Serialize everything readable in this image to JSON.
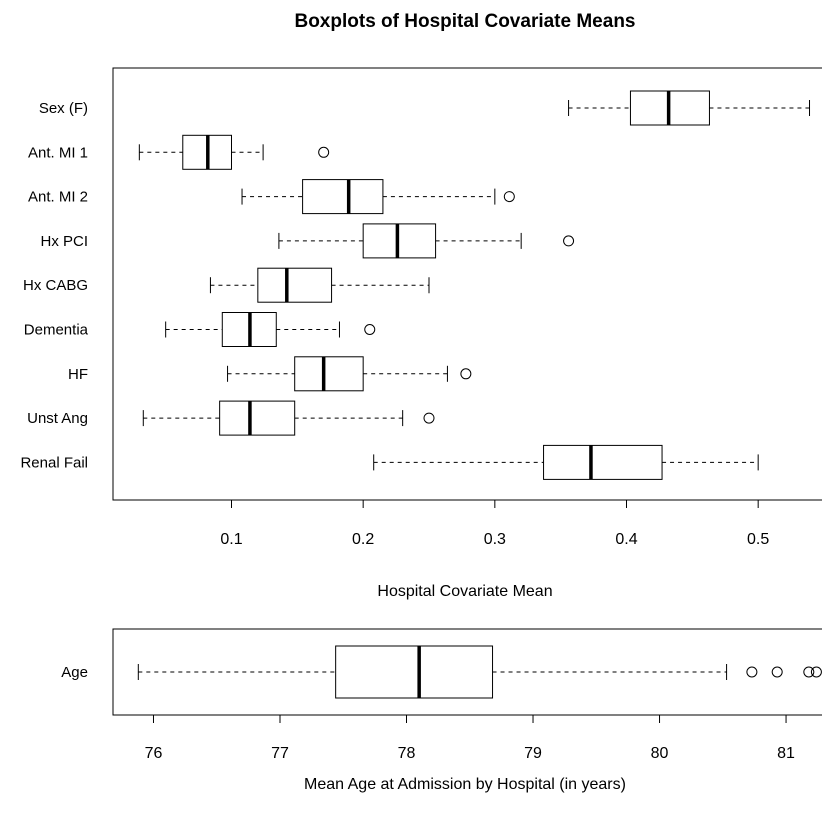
{
  "chart_data": [
    {
      "type": "boxplot",
      "title": "Boxplots of Hospital Covariate Means",
      "xlabel": "Hospital Covariate Mean",
      "ylabel": "",
      "xlim": [
        0.01,
        0.55
      ],
      "xticks": [
        0.1,
        0.2,
        0.3,
        0.4,
        0.5
      ],
      "xtick_labels": [
        "0.1",
        "0.2",
        "0.3",
        "0.4",
        "0.5"
      ],
      "orientation": "horizontal",
      "series": [
        {
          "name": "Sex (F)",
          "whisker_low": 0.356,
          "q1": 0.403,
          "median": 0.432,
          "q3": 0.463,
          "whisker_high": 0.539,
          "outliers": []
        },
        {
          "name": "Ant. MI 1",
          "whisker_low": 0.03,
          "q1": 0.063,
          "median": 0.082,
          "q3": 0.1,
          "whisker_high": 0.124,
          "outliers": [
            0.17
          ]
        },
        {
          "name": "Ant. MI 2",
          "whisker_low": 0.108,
          "q1": 0.154,
          "median": 0.189,
          "q3": 0.215,
          "whisker_high": 0.3,
          "outliers": [
            0.311
          ]
        },
        {
          "name": "Hx PCI",
          "whisker_low": 0.136,
          "q1": 0.2,
          "median": 0.226,
          "q3": 0.255,
          "whisker_high": 0.32,
          "outliers": [
            0.356
          ]
        },
        {
          "name": "Hx CABG",
          "whisker_low": 0.084,
          "q1": 0.12,
          "median": 0.142,
          "q3": 0.176,
          "whisker_high": 0.25,
          "outliers": []
        },
        {
          "name": "Dementia",
          "whisker_low": 0.05,
          "q1": 0.093,
          "median": 0.114,
          "q3": 0.134,
          "whisker_high": 0.182,
          "outliers": [
            0.205
          ]
        },
        {
          "name": "HF",
          "whisker_low": 0.097,
          "q1": 0.148,
          "median": 0.17,
          "q3": 0.2,
          "whisker_high": 0.264,
          "outliers": [
            0.278
          ]
        },
        {
          "name": "Unst Ang",
          "whisker_low": 0.033,
          "q1": 0.091,
          "median": 0.114,
          "q3": 0.148,
          "whisker_high": 0.23,
          "outliers": [
            0.25
          ]
        },
        {
          "name": "Renal Fail",
          "whisker_low": 0.208,
          "q1": 0.337,
          "median": 0.373,
          "q3": 0.427,
          "whisker_high": 0.5,
          "outliers": []
        }
      ]
    },
    {
      "type": "boxplot",
      "title": "",
      "xlabel": "Mean Age at Admission by Hospital (in years)",
      "ylabel": "",
      "xlim": [
        75.68,
        81.3
      ],
      "xticks": [
        76,
        77,
        78,
        79,
        80,
        81
      ],
      "xtick_labels": [
        "76",
        "77",
        "78",
        "79",
        "80",
        "81"
      ],
      "orientation": "horizontal",
      "series": [
        {
          "name": "Age",
          "whisker_low": 75.88,
          "q1": 77.44,
          "median": 78.1,
          "q3": 78.68,
          "whisker_high": 80.53,
          "outliers": [
            80.73,
            80.93,
            81.18,
            81.24
          ]
        }
      ]
    }
  ]
}
